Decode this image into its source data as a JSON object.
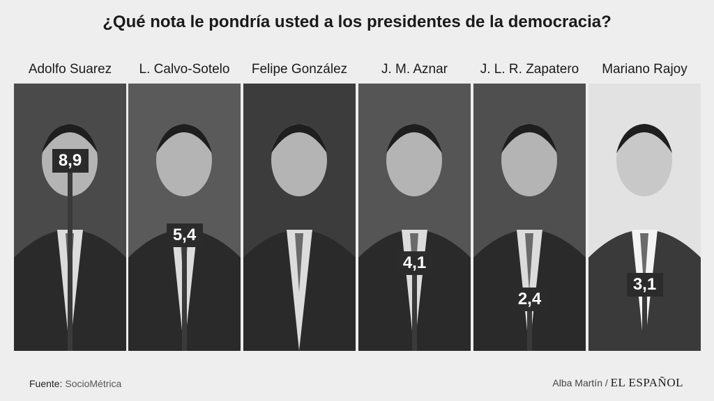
{
  "chart_data": {
    "type": "bar",
    "title": "¿Qué nota le pondría usted a los presidentes de la democracia?",
    "categories": [
      "Adolfo Suarez",
      "L. Calvo-Sotelo",
      "Felipe González",
      "J. M. Aznar",
      "J. L. R. Zapatero",
      "Mariano Rajoy"
    ],
    "values": [
      8.9,
      5.4,
      null,
      4.1,
      2.4,
      3.1
    ],
    "value_labels": [
      "8,9",
      "5,4",
      "",
      "4,1",
      "2,4",
      "3,1"
    ],
    "orientation": "vertical",
    "grid": false,
    "colors": {
      "bar": "#3a3a3a",
      "label_bg": "#2b2b2b",
      "label_text": "#ffffff",
      "background": "#eeeeee"
    }
  },
  "footer": {
    "source_label": "Fuente:",
    "source_name": "SocioMétrica",
    "author": "Alba Martín /",
    "brand": "EL ESPAÑOL"
  }
}
